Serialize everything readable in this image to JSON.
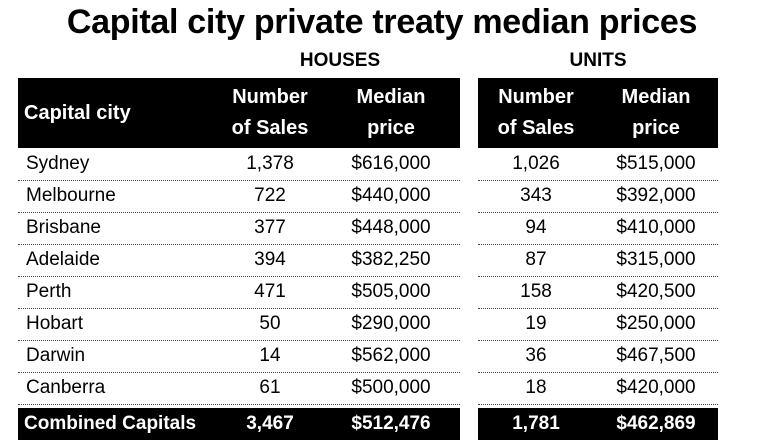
{
  "title": "Capital city private treaty median prices",
  "group_houses": "HOUSES",
  "group_units": "UNITS",
  "headers": {
    "city": "Capital city",
    "houses_sales_1": "Number",
    "houses_sales_2": "of Sales",
    "houses_price_1": "Median",
    "houses_price_2": "price",
    "units_sales_1": "Number",
    "units_sales_2": "of Sales",
    "units_price_1": "Median",
    "units_price_2": "price"
  },
  "chart_data": {
    "type": "table",
    "title": "Capital city private treaty median prices",
    "column_groups": [
      "HOUSES",
      "UNITS"
    ],
    "columns": [
      "Capital city",
      "Number of Sales",
      "Median price",
      "Number of Sales",
      "Median price"
    ],
    "rows": [
      {
        "city": "Sydney",
        "h_sales": "1,378",
        "h_price": "$616,000",
        "u_sales": "1,026",
        "u_price": "$515,000"
      },
      {
        "city": "Melbourne",
        "h_sales": "722",
        "h_price": "$440,000",
        "u_sales": "343",
        "u_price": "$392,000"
      },
      {
        "city": "Brisbane",
        "h_sales": "377",
        "h_price": "$448,000",
        "u_sales": "94",
        "u_price": "$410,000"
      },
      {
        "city": "Adelaide",
        "h_sales": "394",
        "h_price": "$382,250",
        "u_sales": "87",
        "u_price": "$315,000"
      },
      {
        "city": "Perth",
        "h_sales": "471",
        "h_price": "$505,000",
        "u_sales": "158",
        "u_price": "$420,500"
      },
      {
        "city": "Hobart",
        "h_sales": "50",
        "h_price": "$290,000",
        "u_sales": "19",
        "u_price": "$250,000"
      },
      {
        "city": "Darwin",
        "h_sales": "14",
        "h_price": "$562,000",
        "u_sales": "36",
        "u_price": "$467,500"
      },
      {
        "city": "Canberra",
        "h_sales": "61",
        "h_price": "$500,000",
        "u_sales": "18",
        "u_price": "$420,000"
      }
    ],
    "total": {
      "city": "Combined Capitals",
      "h_sales": "3,467",
      "h_price": "$512,476",
      "u_sales": "1,781",
      "u_price": "$462,869"
    }
  }
}
